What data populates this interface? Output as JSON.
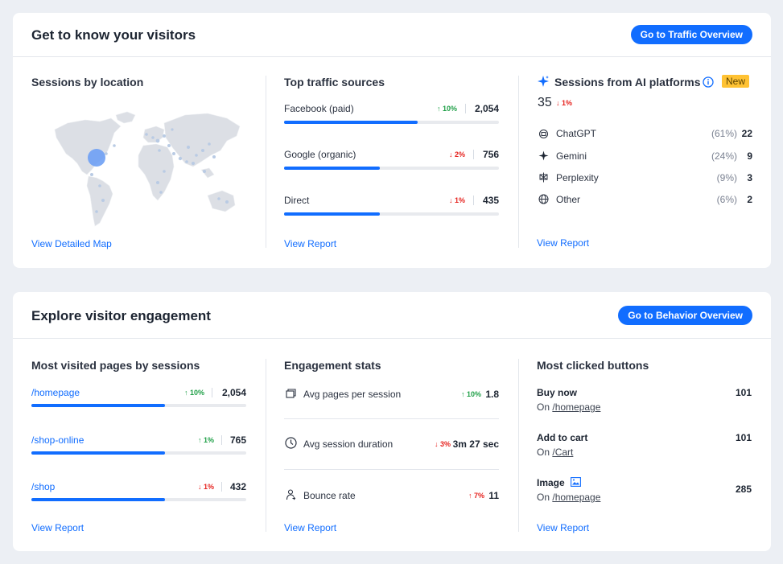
{
  "visitors": {
    "title": "Get to know your visitors",
    "button": "Go to Traffic Overview",
    "location": {
      "title": "Sessions by location",
      "link": "View Detailed Map"
    },
    "traffic": {
      "title": "Top traffic sources",
      "rows": [
        {
          "label": "Facebook (paid)",
          "change": "10%",
          "dir": "up",
          "value": "2,054",
          "fill": 0.62
        },
        {
          "label": "Google (organic)",
          "change": "2%",
          "dir": "down",
          "value": "756",
          "fill": 0.44
        },
        {
          "label": "Direct",
          "change": "1%",
          "dir": "down",
          "value": "435",
          "fill": 0.44
        }
      ],
      "link": "View Report"
    },
    "ai": {
      "title": "Sessions from AI platforms",
      "badge": "New",
      "total": "35",
      "total_change": "1%",
      "rows": [
        {
          "label": "ChatGPT",
          "icon": "chatgpt-icon",
          "pct": "(61%)",
          "value": "22"
        },
        {
          "label": "Gemini",
          "icon": "gemini-icon",
          "pct": "(24%)",
          "value": "9"
        },
        {
          "label": "Perplexity",
          "icon": "perplexity-icon",
          "pct": "(9%)",
          "value": "3"
        },
        {
          "label": "Other",
          "icon": "globe-icon",
          "pct": "(6%)",
          "value": "2"
        }
      ],
      "link": "View Report"
    }
  },
  "engagement": {
    "title": "Explore visitor engagement",
    "button": "Go to Behavior Overview",
    "pages": {
      "title": "Most visited pages by sessions",
      "rows": [
        {
          "label": "/homepage",
          "change": "10%",
          "dir": "up",
          "value": "2,054",
          "fill": 0.62
        },
        {
          "label": "/shop-online",
          "change": "1%",
          "dir": "up",
          "value": "765",
          "fill": 0.62
        },
        {
          "label": "/shop",
          "change": "1%",
          "dir": "down",
          "value": "432",
          "fill": 0.62
        }
      ],
      "link": "View Report"
    },
    "stats": {
      "title": "Engagement stats",
      "rows": [
        {
          "label": "Avg pages per session",
          "icon": "pages-icon",
          "change": "10%",
          "dir": "up",
          "value": "1.8"
        },
        {
          "label": "Avg session duration",
          "icon": "clock-icon",
          "change": "3%",
          "dir": "down",
          "value": "3m 27 sec"
        },
        {
          "label": "Bounce rate",
          "icon": "bounce-icon",
          "change": "7%",
          "dir": "up-red",
          "value": "11"
        }
      ],
      "link": "View Report"
    },
    "buttons": {
      "title": "Most clicked buttons",
      "on_label": "On",
      "rows": [
        {
          "name": "Buy now",
          "page": "/homepage",
          "value": "101"
        },
        {
          "name": "Add to cart",
          "page": "/Cart",
          "value": "101"
        },
        {
          "name": "Image",
          "page": "/homepage",
          "value": "285"
        }
      ],
      "link": "View Report"
    }
  },
  "colors": {
    "accent": "#116dff",
    "up": "#20a048",
    "down": "#e6231f",
    "badge": "#ffc233",
    "map": "#d9dce2",
    "dot": "#a9c4ea"
  }
}
